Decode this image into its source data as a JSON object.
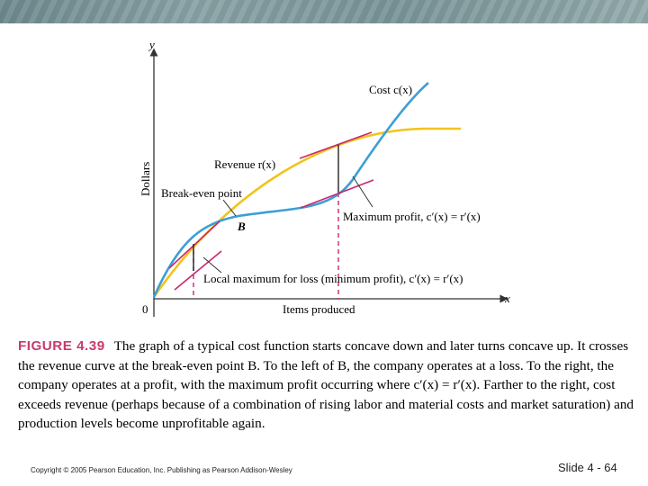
{
  "figure": {
    "axis_y_label": "y",
    "axis_x_label": "x",
    "origin_label": "0",
    "dollars_label": "Dollars",
    "items_label": "Items produced",
    "cost_label": "Cost c(x)",
    "revenue_label": "Revenue r(x)",
    "break_even_label": "Break-even point",
    "point_b_label": "B",
    "max_profit_label": "Maximum profit, c′(x) = r′(x)",
    "local_max_loss_label": "Local maximum for loss (minimum profit), c′(x) = r′(x)",
    "colors": {
      "cost": "#3d9fd6",
      "revenue": "#f2c31b",
      "tangent": "#c8286f",
      "dashed": "#c8286f",
      "axis": "#333333"
    }
  },
  "caption": {
    "label": "FIGURE 4.39",
    "text": "The graph of a typical cost function starts concave down and later turns concave up. It crosses the revenue curve at the break-even point B. To the left of B, the company operates at a loss. To the right, the company operates at a profit, with the maximum profit occurring where c′(x) = r′(x). Farther to the right, cost exceeds revenue (perhaps because of a combination of rising labor and material costs and market saturation) and production levels become unprofitable again."
  },
  "footer": {
    "copyright": "Copyright © 2005 Pearson Education, Inc. Publishing as Pearson Addison-Wesley",
    "slide": "Slide 4 - 64"
  }
}
